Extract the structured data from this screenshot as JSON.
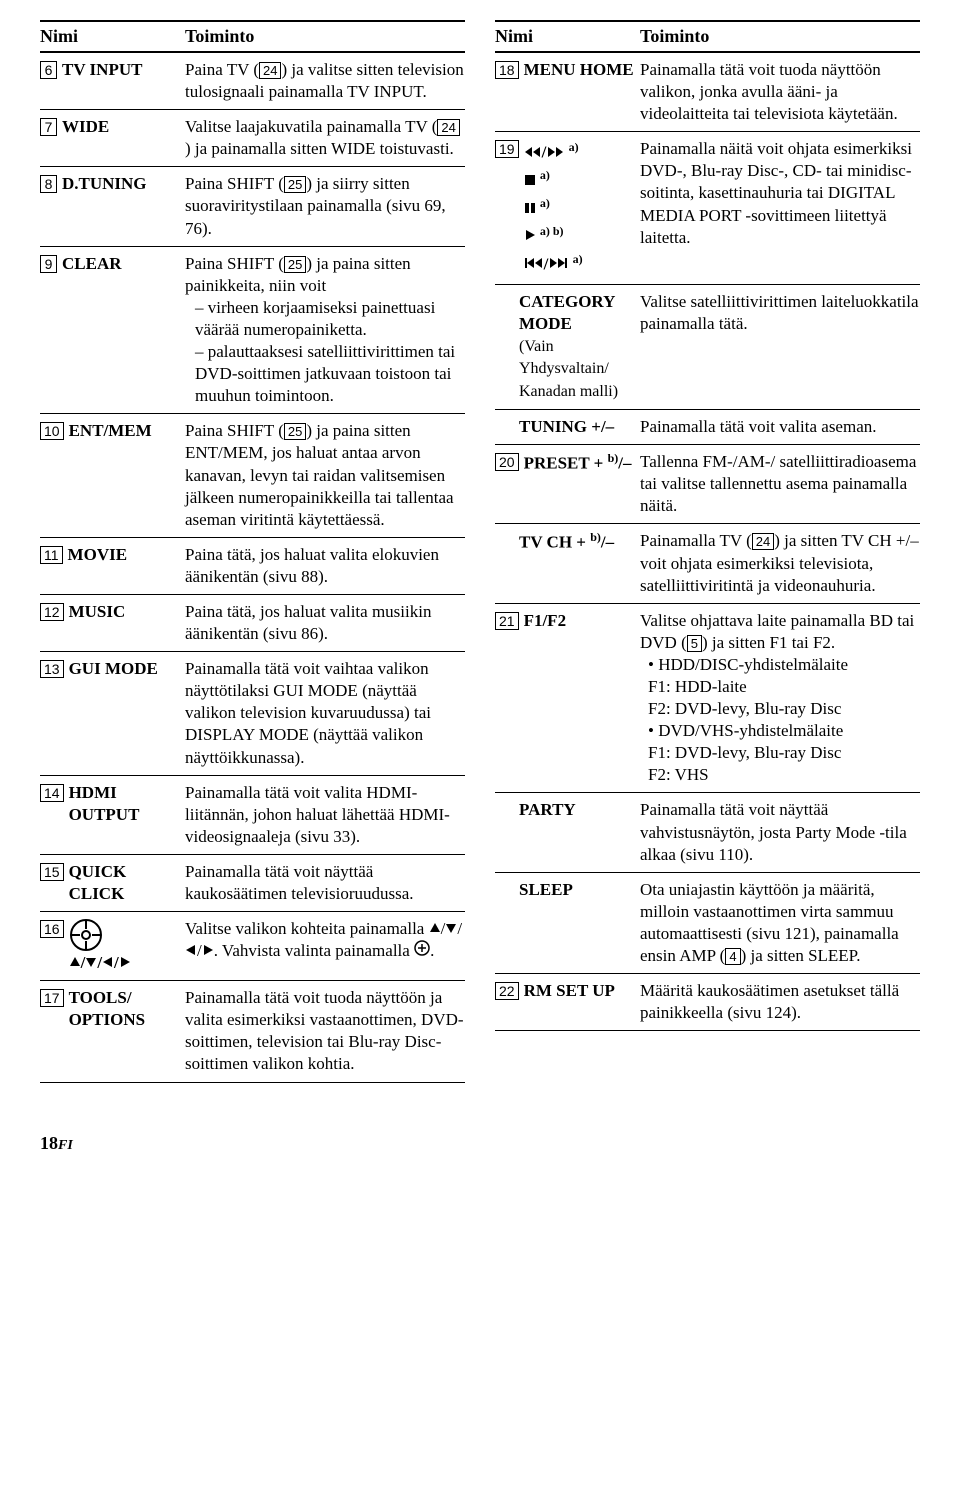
{
  "headers": {
    "name": "Nimi",
    "func": "Toiminto"
  },
  "left": [
    {
      "num": "6",
      "name": "TV INPUT",
      "func": "Paina TV (<box>24</box>) ja valitse sitten television tulosignaali painamalla TV INPUT."
    },
    {
      "num": "7",
      "name": "WIDE",
      "func": "Valitse laajakuvatila painamalla TV (<box>24</box>) ja painamalla sitten WIDE toistuvasti."
    },
    {
      "num": "8",
      "name": "D.TUNING",
      "func": "Paina SHIFT (<box>25</box>) ja siirry sitten suoraviritystilaan painamalla (sivu 69, 76)."
    },
    {
      "num": "9",
      "name": "CLEAR",
      "func": "Paina SHIFT (<box>25</box>) ja paina sitten painikkeita, niin voit<div class=\"dash-list\"><div class=\"dash-item\">virheen korjaamiseksi painettuasi väärää numeropainiketta.</div><div class=\"dash-item\">palauttaaksesi satelliittivirittimen tai DVD-soittimen jatkuvaan toistoon tai muuhun toimintoon.</div></div>"
    },
    {
      "num": "10",
      "name": "ENT/MEM",
      "func": "Paina SHIFT (<box>25</box>) ja paina sitten ENT/MEM, jos haluat antaa arvon kanavan, levyn tai raidan valitsemisen jälkeen numeropainikkeilla tai tallentaa aseman viritintä käytettäessä."
    },
    {
      "num": "11",
      "name": "MOVIE",
      "func": "Paina tätä, jos haluat valita elokuvien äänikentän (sivu 88)."
    },
    {
      "num": "12",
      "name": "MUSIC",
      "func": "Paina tätä, jos haluat valita musiikin äänikentän (sivu 86)."
    },
    {
      "num": "13",
      "name": "GUI MODE",
      "func": "Painamalla tätä voit vaihtaa valikon näyttötilaksi GUI MODE (näyttää valikon television kuvaruudussa) tai DISPLAY MODE (näyttää valikon näyttöikkunassa)."
    },
    {
      "num": "14",
      "name": "HDMI OUTPUT",
      "func": "Painamalla tätä voit valita HDMI-liitännän, johon haluat lähettää HDMI-videosignaaleja (sivu 33)."
    },
    {
      "num": "15",
      "name": "QUICK CLICK",
      "func": "Painamalla tätä voit näyttää kaukosäätimen televisioruudussa."
    },
    {
      "num": "16",
      "name": "<joy>",
      "func": "Valitse valikon kohteita painamalla <au>/<ad>/<al>/<ar>. Vahvista valinta painamalla <cp>."
    },
    {
      "num": "17",
      "name": "TOOLS/ OPTIONS",
      "func": "Painamalla tätä voit tuoda näyttöön ja valita esimerkiksi vastaanottimen, DVD-soittimen, television tai Blu-ray Disc-soittimen valikon kohtia."
    }
  ],
  "right": [
    {
      "num": "18",
      "name": "MENU HOME",
      "func": "Painamalla tätä voit tuoda näyttöön valikon, jonka avulla ääni- ja videolaitteita tai televisiota käytetään."
    },
    {
      "num": "19",
      "name": "<transport>",
      "func": "Painamalla näitä voit ohjata esimerkiksi DVD-, Blu-ray Disc-, CD- tai minidisc-soitinta, kasettinauhuria tai DIGITAL MEDIA PORT -sovittimeen liitettyä laitetta.",
      "subs": [
        {
          "name": "CATEGORY MODE",
          "name_sub": "(Vain Yhdysvaltain/ Kanadan malli)",
          "func": "Valitse satelliittivirittimen laiteluokkatila painamalla tätä."
        },
        {
          "name": "TUNING +/–",
          "func": "Painamalla tätä voit valita aseman."
        }
      ]
    },
    {
      "num": "20",
      "name": "PRESET + <sup>b)</sup>/–",
      "func": "Tallenna FM-/AM-/ satelliittiradioasema tai valitse tallennettu asema painamalla näitä.",
      "subs": [
        {
          "name": "TV CH + <sup>b)</sup>/–",
          "func": "Painamalla TV (<box>24</box>) ja sitten TV CH +/– voit ohjata esimerkiksi televisiota, satelliittiviritintä ja videonauhuria."
        }
      ]
    },
    {
      "num": "21",
      "name": "F1/F2",
      "func": "Valitse ohjattava laite painamalla BD tai DVD (<box>5</box>) ja sitten F1 tai F2.<div class=\"dot-list\"><div class=\"dot-item\">HDD/DISC-yhdistelmälaite<br>F1: HDD-laite<br>F2: DVD-levy, Blu-ray Disc</div><div class=\"dot-item\">DVD/VHS-yhdistelmälaite<br>F1: DVD-levy, Blu-ray Disc<br>F2: VHS</div></div>",
      "subs": [
        {
          "name": "PARTY",
          "func": "Painamalla tätä voit näyttää vahvistusnäytön, josta Party Mode -tila alkaa (sivu 110)."
        },
        {
          "name": "SLEEP",
          "func": "Ota uniajastin käyttöön ja määritä, milloin vastaanottimen virta sammuu automaattisesti (sivu 121), painamalla ensin AMP (<box>4</box>) ja sitten SLEEP."
        }
      ]
    },
    {
      "num": "22",
      "name": "RM SET UP",
      "func": "Määritä kaukosäätimen asetukset tällä painikkeella (sivu 124)."
    }
  ],
  "footer": {
    "page": "18",
    "suffix": "FI"
  }
}
